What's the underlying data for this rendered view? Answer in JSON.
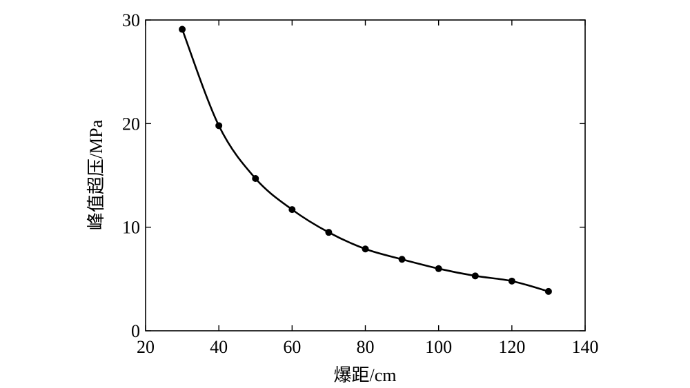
{
  "chart_data": {
    "type": "line",
    "title": "",
    "xlabel": "爆距/cm",
    "ylabel": "峰值超压/MPa",
    "xlim": [
      20,
      140
    ],
    "ylim": [
      0,
      30
    ],
    "x_ticks": [
      20,
      40,
      60,
      80,
      100,
      120,
      140
    ],
    "y_ticks": [
      0,
      10,
      20,
      30
    ],
    "x_tick_labels": [
      "20",
      "40",
      "60",
      "80",
      "100",
      "120",
      "140"
    ],
    "y_tick_labels": [
      "0",
      "10",
      "20",
      "30"
    ],
    "grid": false,
    "legend": "none",
    "smooth": true,
    "markers": "filled-circle",
    "line_color": "#000000",
    "series": [
      {
        "x": [
          30,
          40,
          50,
          60,
          70,
          80,
          90,
          100,
          110,
          120,
          130
        ],
        "y": [
          29.1,
          19.8,
          14.7,
          11.7,
          9.5,
          7.9,
          6.9,
          6.0,
          5.3,
          4.8,
          3.8
        ]
      }
    ]
  }
}
